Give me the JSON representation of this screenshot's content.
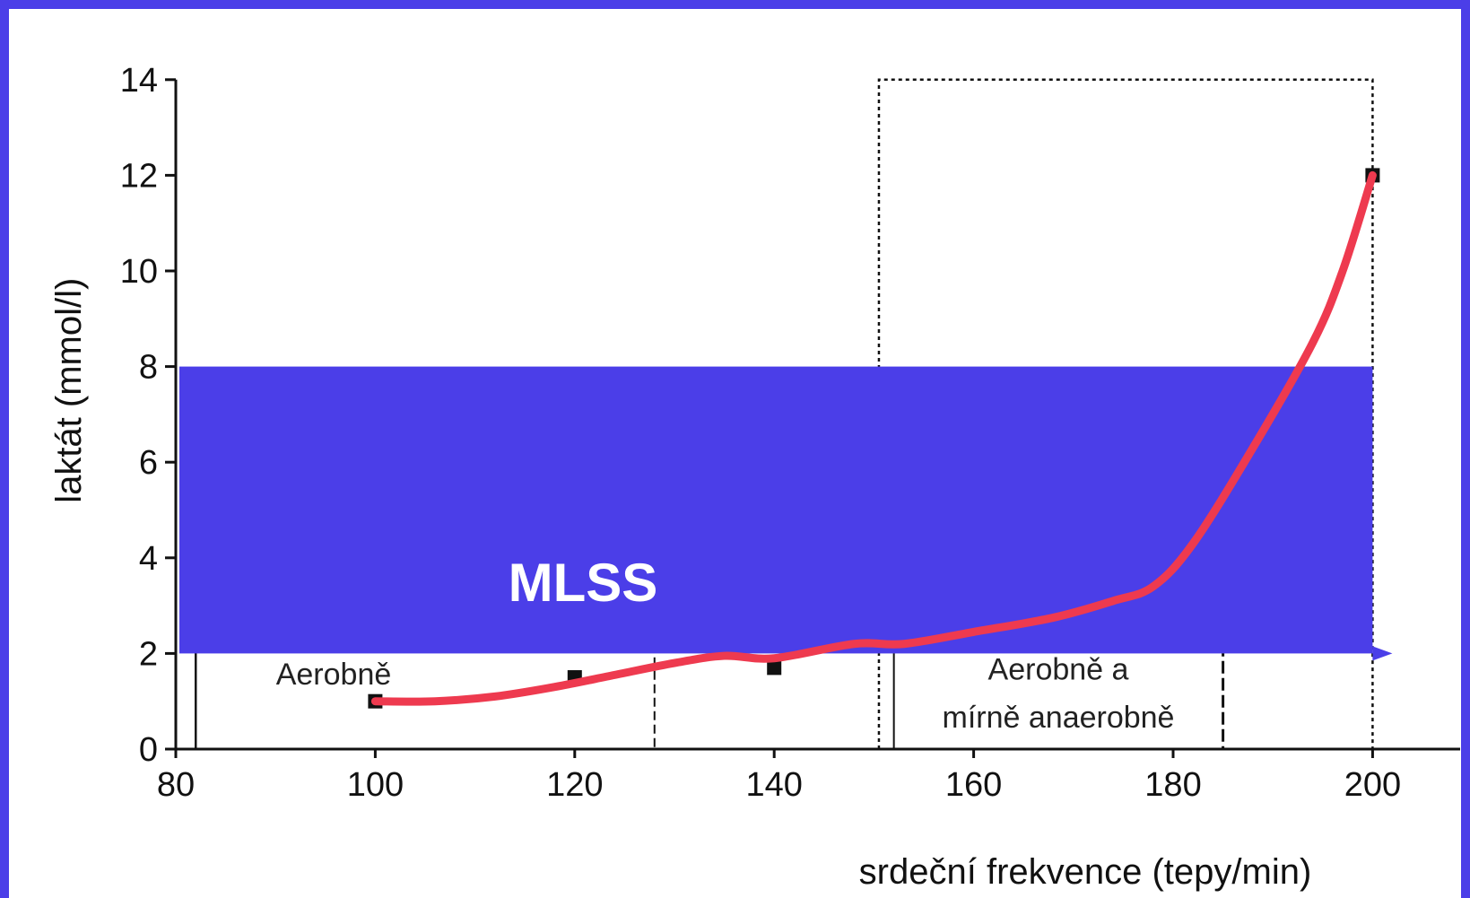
{
  "colors": {
    "frame": "#4b3ee8",
    "mlss_band": "#4b3ee8",
    "curve": "#ee3a4f",
    "ink": "#111111"
  },
  "chart_data": {
    "type": "line",
    "title": "",
    "xlabel": "srdeční frekvence (tepy/min)",
    "ylabel": "laktát (mmol/l)",
    "xlim": [
      80,
      210
    ],
    "ylim": [
      0,
      14
    ],
    "x_ticks": [
      80,
      100,
      120,
      140,
      160,
      180,
      200
    ],
    "y_ticks": [
      0,
      2,
      4,
      6,
      8,
      10,
      12,
      14
    ],
    "measured_points": [
      {
        "x": 100,
        "y": 1.0
      },
      {
        "x": 120,
        "y": 1.5
      },
      {
        "x": 140,
        "y": 1.7
      },
      {
        "x": 200,
        "y": 12.0
      }
    ],
    "fit_curve": {
      "x": [
        100,
        106,
        112,
        118,
        124,
        130,
        135,
        140,
        148,
        153,
        160,
        168,
        174,
        178,
        182,
        188,
        194,
        197,
        200
      ],
      "y": [
        1.0,
        1.0,
        1.1,
        1.3,
        1.55,
        1.8,
        1.95,
        1.9,
        2.2,
        2.2,
        2.45,
        2.75,
        3.1,
        3.4,
        4.3,
        6.3,
        8.5,
        10.0,
        12.0
      ]
    },
    "mlss_band": {
      "label": "MLSS",
      "x_range": [
        80,
        200
      ],
      "y_range": [
        2,
        8
      ]
    },
    "zones": [
      {
        "label_lines": [
          "Aerobně"
        ],
        "x_range": [
          82,
          128
        ]
      },
      {
        "label_lines": [
          "Aerobně a",
          "mírně anaerobně"
        ],
        "x_range": [
          152,
          185
        ]
      },
      {
        "label_lines": [],
        "x_range": [
          150.5,
          200
        ],
        "y_max": 14
      }
    ]
  }
}
